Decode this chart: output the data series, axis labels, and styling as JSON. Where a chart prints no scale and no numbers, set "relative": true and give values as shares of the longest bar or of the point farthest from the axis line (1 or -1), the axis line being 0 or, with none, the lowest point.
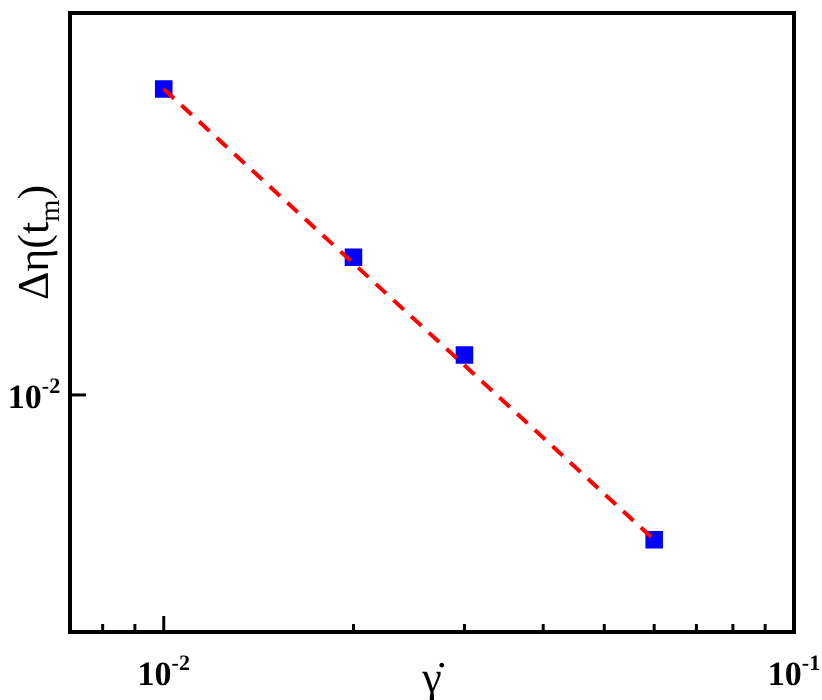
{
  "chart_data": {
    "type": "scatter",
    "xlabel": "γ̇",
    "ylabel": "Δη(t$_{m}$)",
    "log": "x",
    "grid": false,
    "legend": false,
    "marker": "square",
    "relative": true,
    "annotations": [
      "10$^{-2}$"
    ],
    "xlim": [
      0.0071,
      0.1
    ],
    "xticks": [
      {
        "value": 0.008,
        "label": null
      },
      {
        "value": 0.009,
        "label": null
      },
      {
        "value": 0.01,
        "label": "10$^{-2}$"
      },
      {
        "value": 0.02,
        "label": null
      },
      {
        "value": 0.03,
        "label": null
      },
      {
        "value": 0.04,
        "label": null
      },
      {
        "value": 0.05,
        "label": null
      },
      {
        "value": 0.06,
        "label": null
      },
      {
        "value": 0.07,
        "label": null
      },
      {
        "value": 0.08,
        "label": null
      },
      {
        "value": 0.09,
        "label": null
      },
      {
        "value": 0.1,
        "label": "10$^{-1}$"
      }
    ],
    "series": [
      {
        "type": "line",
        "color": "#ff0000",
        "line_style": "dashed",
        "marker": "none",
        "x": [
          0.01,
          0.06
        ],
        "values": [
          1,
          0.17
        ]
      },
      {
        "color": "#0000ff",
        "x": [
          0.01,
          0.02,
          0.03,
          0.06
        ],
        "values": [
          1,
          0.69,
          0.51,
          0.17
        ]
      }
    ]
  }
}
